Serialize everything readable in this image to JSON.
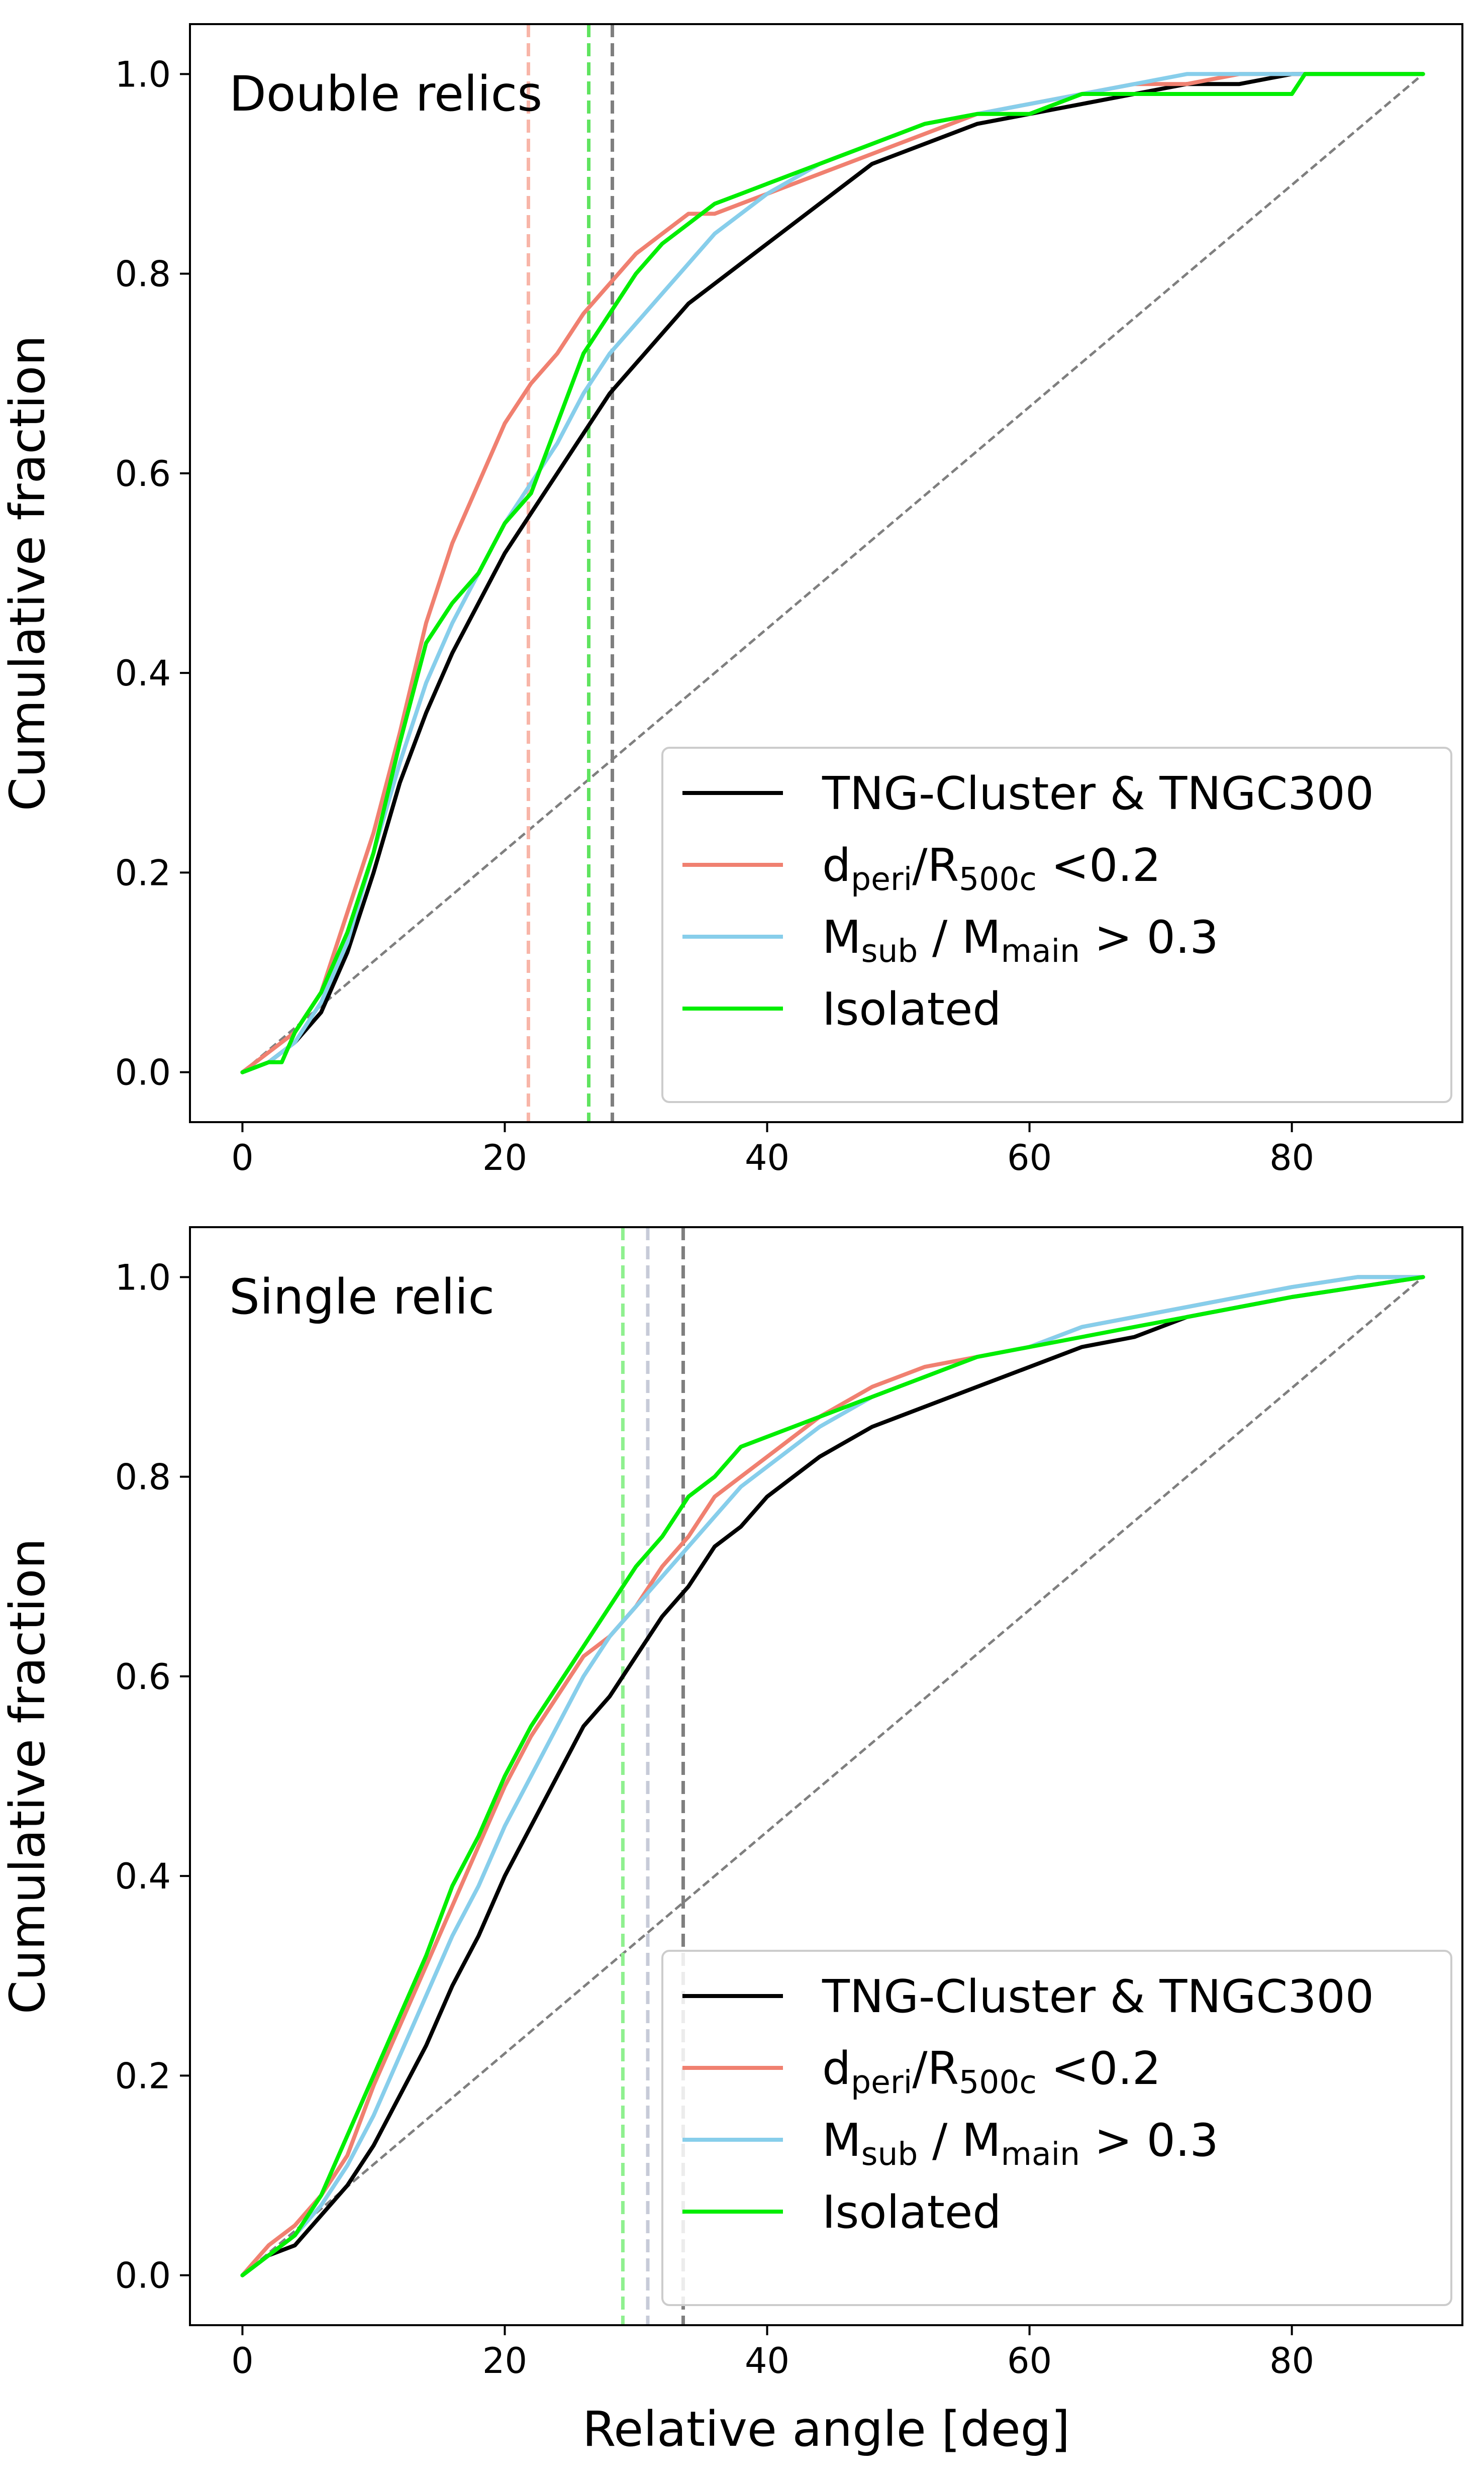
{
  "chart_data": [
    {
      "type": "line",
      "annotation": "Double relics",
      "xlabel": "",
      "ylabel": "Cumulative fraction",
      "xlim": [
        -4,
        93
      ],
      "ylim": [
        -0.05,
        1.05
      ],
      "xticks": [
        0,
        20,
        40,
        60,
        80
      ],
      "yticks": [
        0.0,
        0.2,
        0.4,
        0.6,
        0.8,
        1.0
      ],
      "xtick_labels": [
        "0",
        "20",
        "40",
        "60",
        "80"
      ],
      "ytick_labels": [
        "0.0",
        "0.2",
        "0.4",
        "0.6",
        "0.8",
        "1.0"
      ],
      "legend_placement": "lower right",
      "reference_line": {
        "x": [
          0,
          90
        ],
        "y": [
          0,
          1
        ],
        "color": "#7f7f7f",
        "style": "dashed"
      },
      "vlines": [
        {
          "x": 21.8,
          "color": "#f8b5a8"
        },
        {
          "x": 26.4,
          "color": "#5fe35f"
        },
        {
          "x": 28.2,
          "color": "#7f7f7f"
        }
      ],
      "series": [
        {
          "name": "TNG-Cluster & TNGC300",
          "color": "#000000",
          "x": [
            0,
            2,
            4,
            6,
            8,
            10,
            12,
            14,
            16,
            18,
            20,
            22,
            24,
            26,
            28,
            30,
            32,
            34,
            36,
            38,
            40,
            44,
            48,
            52,
            56,
            60,
            64,
            68,
            72,
            76,
            80,
            85,
            90
          ],
          "y": [
            0,
            0.01,
            0.03,
            0.06,
            0.12,
            0.2,
            0.29,
            0.36,
            0.42,
            0.47,
            0.52,
            0.56,
            0.6,
            0.64,
            0.68,
            0.71,
            0.74,
            0.77,
            0.79,
            0.81,
            0.83,
            0.87,
            0.91,
            0.93,
            0.95,
            0.96,
            0.97,
            0.98,
            0.99,
            0.99,
            1.0,
            1.0,
            1.0
          ]
        },
        {
          "name": "d_peri/R_500c <0.2",
          "label_main": "d",
          "label_sub1": "peri",
          "label_mid": "/R",
          "label_sub2": "500c",
          "label_end": " <0.2",
          "color": "#f08070",
          "x": [
            0,
            2,
            4,
            6,
            8,
            10,
            12,
            14,
            16,
            18,
            20,
            22,
            24,
            26,
            28,
            30,
            32,
            34,
            36,
            38,
            40,
            44,
            48,
            52,
            56,
            60,
            64,
            68,
            72,
            76,
            80,
            85,
            90
          ],
          "y": [
            0,
            0.02,
            0.04,
            0.08,
            0.16,
            0.24,
            0.34,
            0.45,
            0.53,
            0.59,
            0.65,
            0.69,
            0.72,
            0.76,
            0.79,
            0.82,
            0.84,
            0.86,
            0.86,
            0.87,
            0.88,
            0.9,
            0.92,
            0.94,
            0.96,
            0.97,
            0.98,
            0.99,
            0.99,
            1.0,
            1.0,
            1.0,
            1.0
          ]
        },
        {
          "name": "M_sub / M_main > 0.3",
          "label_main": "M",
          "label_sub1": "sub",
          "label_mid": " / M",
          "label_sub2": "main",
          "label_end": " > 0.3",
          "color": "#87ceeb",
          "x": [
            0,
            2,
            4,
            6,
            8,
            10,
            12,
            14,
            16,
            18,
            20,
            22,
            24,
            26,
            28,
            30,
            32,
            34,
            36,
            38,
            40,
            44,
            48,
            52,
            56,
            60,
            64,
            68,
            72,
            76,
            80,
            85,
            90
          ],
          "y": [
            0,
            0.01,
            0.03,
            0.07,
            0.13,
            0.22,
            0.31,
            0.39,
            0.45,
            0.5,
            0.55,
            0.59,
            0.63,
            0.68,
            0.72,
            0.75,
            0.78,
            0.81,
            0.84,
            0.86,
            0.88,
            0.91,
            0.93,
            0.95,
            0.96,
            0.97,
            0.98,
            0.99,
            1.0,
            1.0,
            1.0,
            1.0,
            1.0
          ]
        },
        {
          "name": "Isolated",
          "color": "#00ee00",
          "x": [
            0,
            2,
            3,
            4,
            6,
            8,
            10,
            12,
            14,
            16,
            18,
            20,
            22,
            24,
            26,
            28,
            30,
            32,
            34,
            36,
            38,
            40,
            44,
            48,
            52,
            56,
            60,
            64,
            68,
            72,
            80,
            81,
            90
          ],
          "y": [
            0,
            0.01,
            0.01,
            0.04,
            0.08,
            0.14,
            0.22,
            0.33,
            0.43,
            0.47,
            0.5,
            0.55,
            0.58,
            0.65,
            0.72,
            0.76,
            0.8,
            0.83,
            0.85,
            0.87,
            0.88,
            0.89,
            0.91,
            0.93,
            0.95,
            0.96,
            0.96,
            0.98,
            0.98,
            0.98,
            0.98,
            1.0,
            1.0
          ]
        }
      ]
    },
    {
      "type": "line",
      "annotation": "Single relic",
      "xlabel": "Relative angle [deg]",
      "ylabel": "Cumulative fraction",
      "xlim": [
        -4,
        93
      ],
      "ylim": [
        -0.05,
        1.05
      ],
      "xticks": [
        0,
        20,
        40,
        60,
        80
      ],
      "yticks": [
        0.0,
        0.2,
        0.4,
        0.6,
        0.8,
        1.0
      ],
      "xtick_labels": [
        "0",
        "20",
        "40",
        "60",
        "80"
      ],
      "ytick_labels": [
        "0.0",
        "0.2",
        "0.4",
        "0.6",
        "0.8",
        "1.0"
      ],
      "legend_placement": "lower right",
      "reference_line": {
        "x": [
          0,
          90
        ],
        "y": [
          0,
          1
        ],
        "color": "#7f7f7f",
        "style": "dashed"
      },
      "vlines": [
        {
          "x": 29.0,
          "color": "#8ff08f"
        },
        {
          "x": 30.9,
          "color": "#c7cbd8"
        },
        {
          "x": 33.6,
          "color": "#7f7f7f"
        }
      ],
      "series": [
        {
          "name": "TNG-Cluster & TNGC300",
          "color": "#000000",
          "x": [
            0,
            2,
            4,
            6,
            8,
            10,
            12,
            14,
            16,
            18,
            20,
            22,
            24,
            26,
            28,
            30,
            32,
            34,
            36,
            38,
            40,
            44,
            48,
            52,
            56,
            60,
            64,
            68,
            72,
            76,
            80,
            85,
            90
          ],
          "y": [
            0,
            0.02,
            0.03,
            0.06,
            0.09,
            0.13,
            0.18,
            0.23,
            0.29,
            0.34,
            0.4,
            0.45,
            0.5,
            0.55,
            0.58,
            0.62,
            0.66,
            0.69,
            0.73,
            0.75,
            0.78,
            0.82,
            0.85,
            0.87,
            0.89,
            0.91,
            0.93,
            0.94,
            0.96,
            0.97,
            0.98,
            0.99,
            1.0
          ]
        },
        {
          "name": "d_peri/R_500c <0.2",
          "label_main": "d",
          "label_sub1": "peri",
          "label_mid": "/R",
          "label_sub2": "500c",
          "label_end": " <0.2",
          "color": "#f08070",
          "x": [
            0,
            2,
            4,
            6,
            8,
            10,
            12,
            14,
            16,
            18,
            20,
            22,
            24,
            26,
            28,
            30,
            32,
            34,
            36,
            38,
            40,
            44,
            48,
            52,
            56,
            60,
            64,
            68,
            72,
            76,
            80,
            85,
            90
          ],
          "y": [
            0,
            0.03,
            0.05,
            0.08,
            0.12,
            0.19,
            0.25,
            0.31,
            0.37,
            0.43,
            0.49,
            0.54,
            0.58,
            0.62,
            0.64,
            0.67,
            0.71,
            0.74,
            0.78,
            0.8,
            0.82,
            0.86,
            0.89,
            0.91,
            0.92,
            0.93,
            0.95,
            0.96,
            0.97,
            0.98,
            0.99,
            1.0,
            1.0
          ]
        },
        {
          "name": "M_sub / M_main > 0.3",
          "label_main": "M",
          "label_sub1": "sub",
          "label_mid": " / M",
          "label_sub2": "main",
          "label_end": " > 0.3",
          "color": "#87ceeb",
          "x": [
            0,
            2,
            4,
            6,
            8,
            10,
            12,
            14,
            16,
            18,
            20,
            22,
            24,
            26,
            28,
            30,
            32,
            34,
            36,
            38,
            40,
            44,
            48,
            52,
            56,
            60,
            64,
            68,
            72,
            76,
            80,
            85,
            90
          ],
          "y": [
            0,
            0.02,
            0.04,
            0.07,
            0.11,
            0.16,
            0.22,
            0.28,
            0.34,
            0.39,
            0.45,
            0.5,
            0.55,
            0.6,
            0.64,
            0.67,
            0.7,
            0.73,
            0.76,
            0.79,
            0.81,
            0.85,
            0.88,
            0.9,
            0.92,
            0.93,
            0.95,
            0.96,
            0.97,
            0.98,
            0.99,
            1.0,
            1.0
          ]
        },
        {
          "name": "Isolated",
          "color": "#00ee00",
          "x": [
            0,
            2,
            4,
            6,
            8,
            10,
            12,
            14,
            16,
            18,
            20,
            22,
            24,
            26,
            28,
            30,
            32,
            34,
            36,
            38,
            40,
            44,
            48,
            52,
            56,
            60,
            64,
            68,
            72,
            76,
            80,
            85,
            90
          ],
          "y": [
            0,
            0.02,
            0.04,
            0.08,
            0.14,
            0.2,
            0.26,
            0.32,
            0.39,
            0.44,
            0.5,
            0.55,
            0.59,
            0.63,
            0.67,
            0.71,
            0.74,
            0.78,
            0.8,
            0.83,
            0.84,
            0.86,
            0.88,
            0.9,
            0.92,
            0.93,
            0.94,
            0.95,
            0.96,
            0.97,
            0.98,
            0.99,
            1.0
          ]
        }
      ]
    }
  ]
}
